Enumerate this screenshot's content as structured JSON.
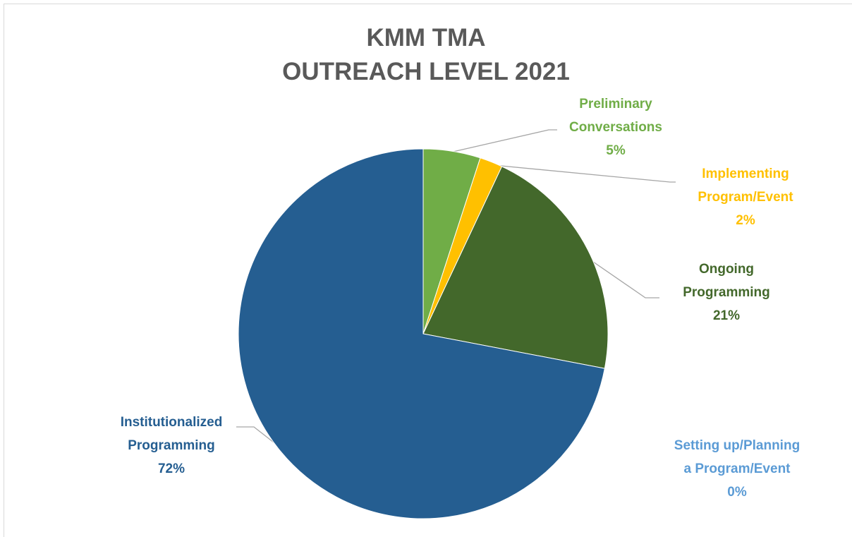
{
  "chart_data": {
    "type": "pie",
    "title": "KMM TMA\nOUTREACH LEVEL 2021",
    "categories": [
      "Preliminary\nConversations",
      "Implementing\nProgram/Event",
      "Ongoing\nProgramming",
      "Setting up/Planning\na Program/Event",
      "Institutionalized\nProgramming"
    ],
    "values": [
      5,
      2,
      21,
      0,
      72
    ],
    "value_labels": [
      "5%",
      "2%",
      "21%",
      "0%",
      "72%"
    ],
    "colors": [
      "#70ad47",
      "#ffc000",
      "#43682b",
      "#5b9bd5",
      "#255e91"
    ]
  }
}
